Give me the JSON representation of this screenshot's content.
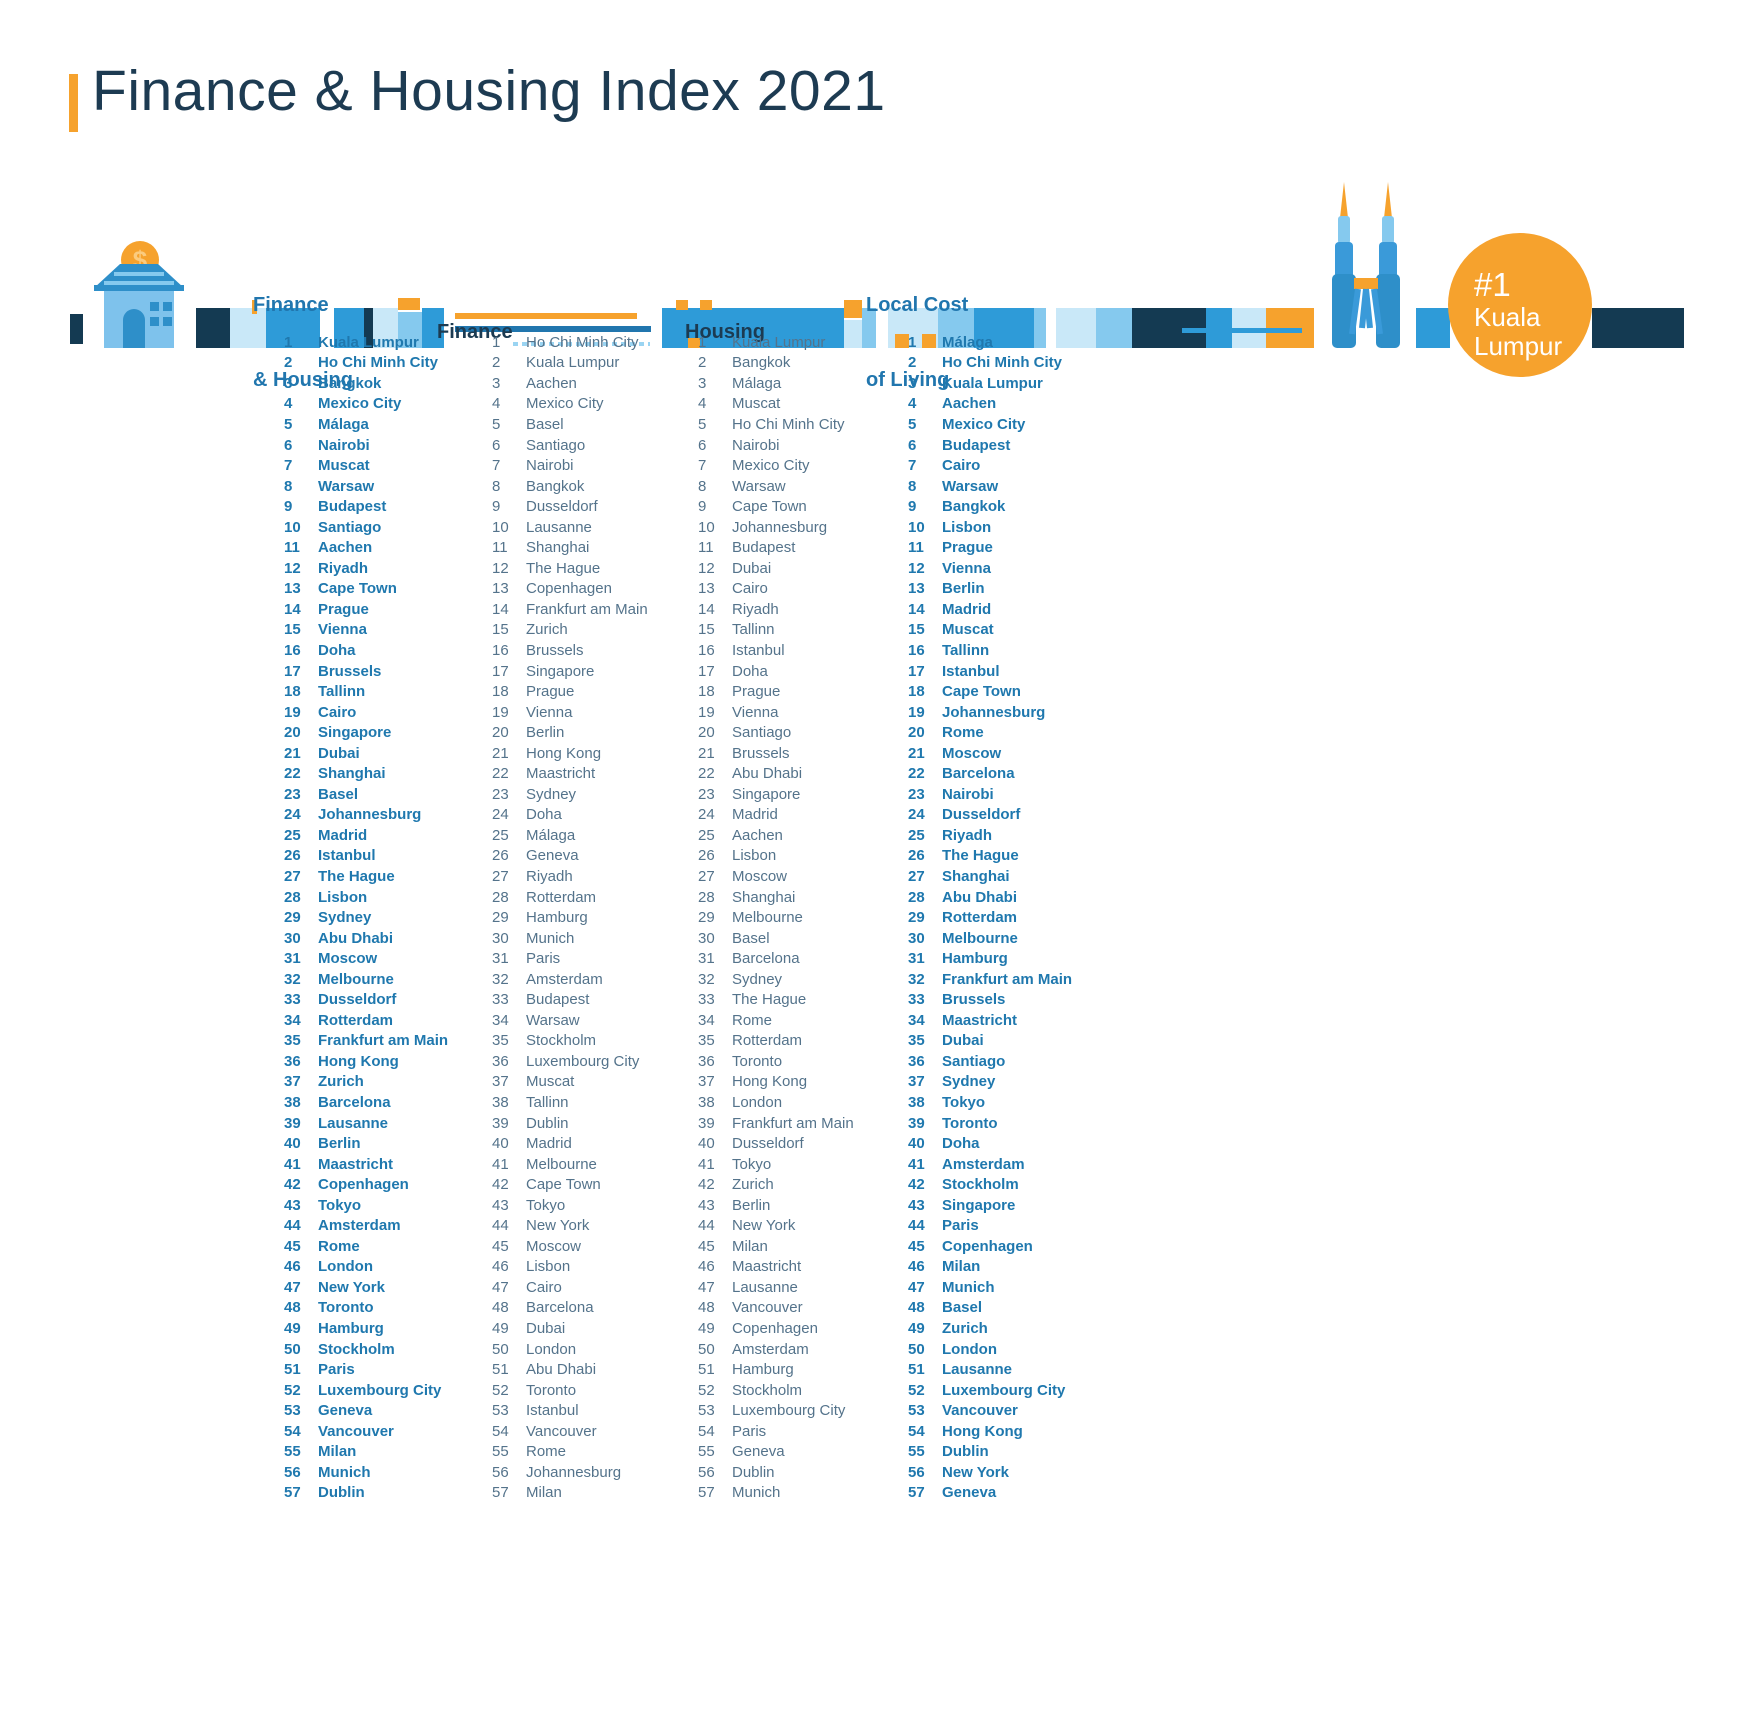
{
  "title": "Finance & Housing Index 2021",
  "badge": {
    "rank_label": "#1",
    "city": "Kuala Lumpur",
    "city_line1": "Kuala",
    "city_line2": "Lumpur"
  },
  "colors": {
    "accent_orange": "#F6A22D",
    "navy": "#1C3B52",
    "bold_blue": "#1F78AE",
    "regular_gray_blue": "#54738B",
    "band_dark": "#143A52",
    "band_mid": "#2E9BD8",
    "band_light": "#85C9EE",
    "band_pale": "#C9E8F8"
  },
  "chart_data": {
    "type": "table",
    "title": "Finance & Housing Index 2021",
    "rank_range": [
      1,
      57
    ],
    "columns": [
      {
        "label": "Finance & Housing",
        "header_line1": "Finance",
        "header_line2": "& Housing",
        "emphasis": true,
        "cities": [
          "Kuala Lumpur",
          "Ho Chi Minh City",
          "Bangkok",
          "Mexico City",
          "Málaga",
          "Nairobi",
          "Muscat",
          "Warsaw",
          "Budapest",
          "Santiago",
          "Aachen",
          "Riyadh",
          "Cape Town",
          "Prague",
          "Vienna",
          "Doha",
          "Brussels",
          "Tallinn",
          "Cairo",
          "Singapore",
          "Dubai",
          "Shanghai",
          "Basel",
          "Johannesburg",
          "Madrid",
          "Istanbul",
          "The Hague",
          "Lisbon",
          "Sydney",
          "Abu Dhabi",
          "Moscow",
          "Melbourne",
          "Dusseldorf",
          "Rotterdam",
          "Frankfurt am Main",
          "Hong Kong",
          "Zurich",
          "Barcelona",
          "Lausanne",
          "Berlin",
          "Maastricht",
          "Copenhagen",
          "Tokyo",
          "Amsterdam",
          "Rome",
          "London",
          "New York",
          "Toronto",
          "Hamburg",
          "Stockholm",
          "Paris",
          "Luxembourg City",
          "Geneva",
          "Vancouver",
          "Milan",
          "Munich",
          "Dublin"
        ]
      },
      {
        "label": "Finance",
        "header_line1": "Finance",
        "header_line2": "",
        "emphasis": false,
        "cities": [
          "Ho Chi Minh City",
          "Kuala Lumpur",
          "Aachen",
          "Mexico City",
          "Basel",
          "Santiago",
          "Nairobi",
          "Bangkok",
          "Dusseldorf",
          "Lausanne",
          "Shanghai",
          "The Hague",
          "Copenhagen",
          "Frankfurt am Main",
          "Zurich",
          "Brussels",
          "Singapore",
          "Prague",
          "Vienna",
          "Berlin",
          "Hong Kong",
          "Maastricht",
          "Sydney",
          "Doha",
          "Málaga",
          "Geneva",
          "Riyadh",
          "Rotterdam",
          "Hamburg",
          "Munich",
          "Paris",
          "Amsterdam",
          "Budapest",
          "Warsaw",
          "Stockholm",
          "Luxembourg City",
          "Muscat",
          "Tallinn",
          "Dublin",
          "Madrid",
          "Melbourne",
          "Cape Town",
          "Tokyo",
          "New York",
          "Moscow",
          "Lisbon",
          "Cairo",
          "Barcelona",
          "Dubai",
          "London",
          "Abu Dhabi",
          "Toronto",
          "Istanbul",
          "Vancouver",
          "Rome",
          "Johannesburg",
          "Milan"
        ]
      },
      {
        "label": "Housing",
        "header_line1": "Housing",
        "header_line2": "",
        "emphasis": false,
        "cities": [
          "Kuala Lumpur",
          "Bangkok",
          "Málaga",
          "Muscat",
          "Ho Chi Minh City",
          "Nairobi",
          "Mexico City",
          "Warsaw",
          "Cape Town",
          "Johannesburg",
          "Budapest",
          "Dubai",
          "Cairo",
          "Riyadh",
          "Tallinn",
          "Istanbul",
          "Doha",
          "Prague",
          "Vienna",
          "Santiago",
          "Brussels",
          "Abu Dhabi",
          "Singapore",
          "Madrid",
          "Aachen",
          "Lisbon",
          "Moscow",
          "Shanghai",
          "Melbourne",
          "Basel",
          "Barcelona",
          "Sydney",
          "The Hague",
          "Rome",
          "Rotterdam",
          "Toronto",
          "Hong Kong",
          "London",
          "Frankfurt am Main",
          "Dusseldorf",
          "Tokyo",
          "Zurich",
          "Berlin",
          "New York",
          "Milan",
          "Maastricht",
          "Lausanne",
          "Vancouver",
          "Copenhagen",
          "Amsterdam",
          "Hamburg",
          "Stockholm",
          "Luxembourg City",
          "Paris",
          "Geneva",
          "Dublin",
          "Munich"
        ]
      },
      {
        "label": "Local Cost of Living",
        "header_line1": "Local Cost",
        "header_line2": "of Living",
        "emphasis": true,
        "cities": [
          "Málaga",
          "Ho Chi Minh City",
          "Kuala Lumpur",
          "Aachen",
          "Mexico City",
          "Budapest",
          "Cairo",
          "Warsaw",
          "Bangkok",
          "Lisbon",
          "Prague",
          "Vienna",
          "Berlin",
          "Madrid",
          "Muscat",
          "Tallinn",
          "Istanbul",
          "Cape Town",
          "Johannesburg",
          "Rome",
          "Moscow",
          "Barcelona",
          "Nairobi",
          "Dusseldorf",
          "Riyadh",
          "The Hague",
          "Shanghai",
          "Abu Dhabi",
          "Rotterdam",
          "Melbourne",
          "Hamburg",
          "Frankfurt am Main",
          "Brussels",
          "Maastricht",
          "Dubai",
          "Santiago",
          "Sydney",
          "Tokyo",
          "Toronto",
          "Doha",
          "Amsterdam",
          "Stockholm",
          "Singapore",
          "Paris",
          "Copenhagen",
          "Milan",
          "Munich",
          "Basel",
          "Zurich",
          "London",
          "Lausanne",
          "Luxembourg City",
          "Vancouver",
          "Hong Kong",
          "Dublin",
          "New York",
          "Geneva"
        ]
      }
    ]
  }
}
